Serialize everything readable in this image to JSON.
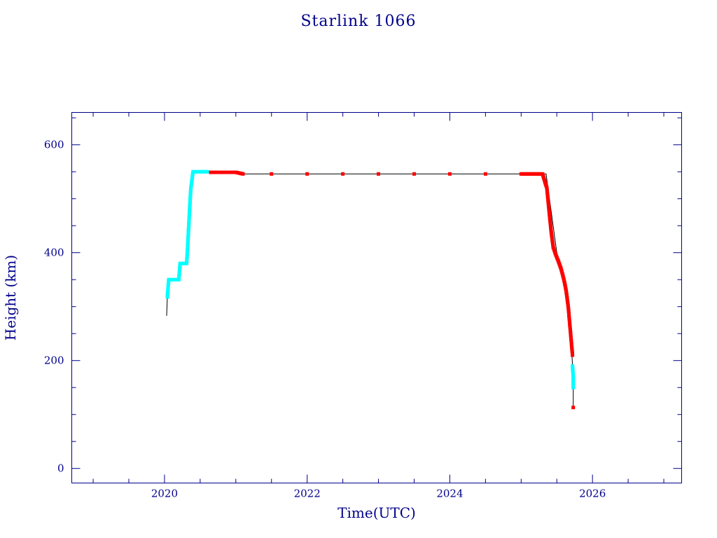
{
  "chart_data": {
    "type": "scatter",
    "title": "Starlink 1066",
    "xlabel": "Time(UTC)",
    "ylabel": "Height (km)",
    "xlim": [
      2018.7,
      2027.25
    ],
    "ylim": [
      -27,
      660
    ],
    "x_ticks": [
      2020,
      2022,
      2024,
      2026
    ],
    "y_ticks": [
      0,
      200,
      400,
      600
    ],
    "grid": false,
    "legend": "none",
    "colors": {
      "axis": "#00008b",
      "phase_a": "#00ffff",
      "phase_b": "#ff0000",
      "trace": "#000000",
      "background": "#ffffff"
    },
    "trace": [
      {
        "x": 2020.03,
        "y": 283
      },
      {
        "x": 2020.04,
        "y": 318
      },
      {
        "x": 2020.06,
        "y": 350
      },
      {
        "x": 2020.2,
        "y": 350
      },
      {
        "x": 2020.21,
        "y": 380
      },
      {
        "x": 2020.31,
        "y": 380
      },
      {
        "x": 2020.4,
        "y": 550
      },
      {
        "x": 2021.0,
        "y": 549
      },
      {
        "x": 2021.05,
        "y": 546
      },
      {
        "x": 2025.35,
        "y": 546
      },
      {
        "x": 2025.5,
        "y": 400
      },
      {
        "x": 2025.6,
        "y": 350
      },
      {
        "x": 2025.65,
        "y": 300
      },
      {
        "x": 2025.68,
        "y": 260
      },
      {
        "x": 2025.71,
        "y": 220
      },
      {
        "x": 2025.72,
        "y": 190
      },
      {
        "x": 2025.73,
        "y": 150
      },
      {
        "x": 2025.73,
        "y": 113
      }
    ],
    "series": [
      {
        "color": "#00ffff",
        "points": [
          {
            "x": 2020.04,
            "y": 318
          },
          {
            "x": 2020.05,
            "y": 335
          },
          {
            "x": 2020.06,
            "y": 350
          },
          {
            "x": 2020.09,
            "y": 350
          },
          {
            "x": 2020.12,
            "y": 350
          },
          {
            "x": 2020.15,
            "y": 350
          },
          {
            "x": 2020.18,
            "y": 350
          },
          {
            "x": 2020.2,
            "y": 350
          },
          {
            "x": 2020.21,
            "y": 366
          },
          {
            "x": 2020.22,
            "y": 380
          },
          {
            "x": 2020.25,
            "y": 380
          },
          {
            "x": 2020.28,
            "y": 380
          },
          {
            "x": 2020.31,
            "y": 380
          },
          {
            "x": 2020.32,
            "y": 400
          },
          {
            "x": 2020.33,
            "y": 425
          },
          {
            "x": 2020.34,
            "y": 450
          },
          {
            "x": 2020.35,
            "y": 475
          },
          {
            "x": 2020.36,
            "y": 500
          },
          {
            "x": 2020.37,
            "y": 520
          },
          {
            "x": 2020.39,
            "y": 540
          },
          {
            "x": 2020.4,
            "y": 550
          },
          {
            "x": 2020.45,
            "y": 550
          },
          {
            "x": 2020.5,
            "y": 550
          },
          {
            "x": 2020.55,
            "y": 550
          },
          {
            "x": 2020.6,
            "y": 550
          },
          {
            "x": 2025.72,
            "y": 190
          },
          {
            "x": 2025.73,
            "y": 170
          },
          {
            "x": 2025.73,
            "y": 150
          }
        ]
      },
      {
        "color": "#ff0000",
        "points": [
          {
            "x": 2020.65,
            "y": 549
          },
          {
            "x": 2020.8,
            "y": 549
          },
          {
            "x": 2021.0,
            "y": 549
          },
          {
            "x": 2021.1,
            "y": 546
          },
          {
            "x": 2021.5,
            "y": 546
          },
          {
            "x": 2022.0,
            "y": 546
          },
          {
            "x": 2022.5,
            "y": 546
          },
          {
            "x": 2023.0,
            "y": 546
          },
          {
            "x": 2023.5,
            "y": 546
          },
          {
            "x": 2024.0,
            "y": 546
          },
          {
            "x": 2024.5,
            "y": 546
          },
          {
            "x": 2025.0,
            "y": 546
          },
          {
            "x": 2025.3,
            "y": 546
          },
          {
            "x": 2025.36,
            "y": 520
          },
          {
            "x": 2025.39,
            "y": 480
          },
          {
            "x": 2025.42,
            "y": 440
          },
          {
            "x": 2025.45,
            "y": 410
          },
          {
            "x": 2025.48,
            "y": 398
          },
          {
            "x": 2025.52,
            "y": 385
          },
          {
            "x": 2025.56,
            "y": 370
          },
          {
            "x": 2025.6,
            "y": 350
          },
          {
            "x": 2025.63,
            "y": 330
          },
          {
            "x": 2025.66,
            "y": 300
          },
          {
            "x": 2025.68,
            "y": 270
          },
          {
            "x": 2025.7,
            "y": 240
          },
          {
            "x": 2025.72,
            "y": 210
          },
          {
            "x": 2025.73,
            "y": 113
          }
        ]
      }
    ]
  }
}
